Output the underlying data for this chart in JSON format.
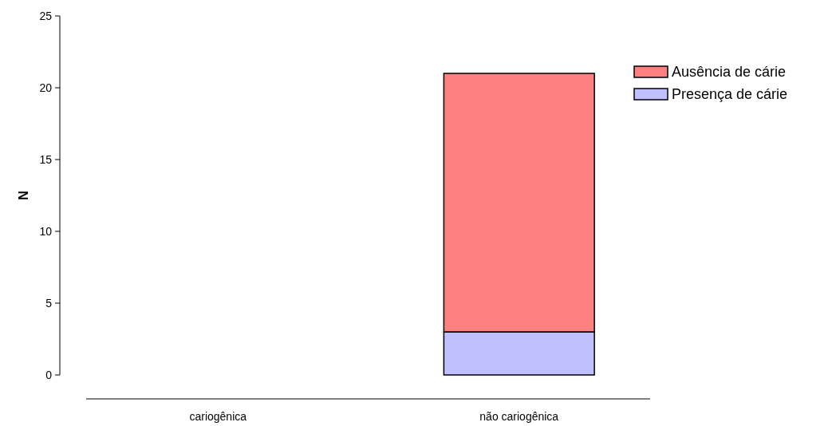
{
  "chart_data": {
    "type": "bar",
    "stacked": true,
    "ylabel": "N",
    "categories": [
      "cariogênica",
      "não cariogênica"
    ],
    "series": [
      {
        "name": "Presença de cárie",
        "color": "#c0c0ff",
        "values": [
          0,
          3
        ]
      },
      {
        "name": "Ausência de cárie",
        "color": "#ff8080",
        "values": [
          0,
          18
        ]
      }
    ],
    "ylim": [
      0,
      25
    ],
    "yticks": [
      0,
      5,
      10,
      15,
      20,
      25
    ],
    "grid": false,
    "legend": "right"
  }
}
